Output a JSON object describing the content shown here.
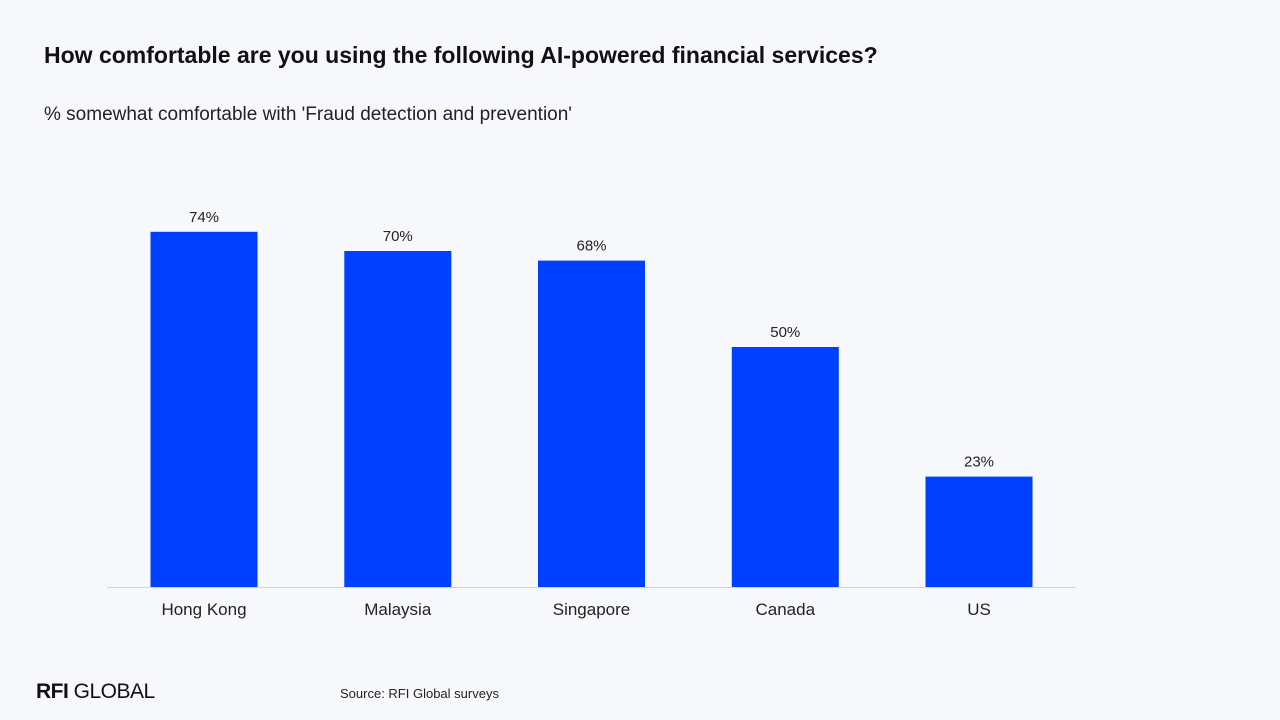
{
  "header": {
    "title": "How comfortable are you using the following AI-powered financial services?",
    "subtitle": "% somewhat comfortable with 'Fraud detection and prevention'"
  },
  "chart_data": {
    "type": "bar",
    "categories": [
      "Hong Kong",
      "Malaysia",
      "Singapore",
      "Canada",
      "US"
    ],
    "values": [
      74,
      70,
      68,
      50,
      23
    ],
    "value_labels": [
      "74%",
      "70%",
      "68%",
      "50%",
      "23%"
    ],
    "title": "How comfortable are you using the following AI-powered financial services?",
    "subtitle": "% somewhat comfortable with 'Fraud detection and prevention'",
    "xlabel": "",
    "ylabel": "",
    "ylim": [
      0,
      80
    ],
    "grid": false,
    "legend": "none",
    "bar_color": "#0040ff",
    "axis_color": "#cfd3dc"
  },
  "footer": {
    "logo_bold": "RFI",
    "logo_regular": " GLOBAL",
    "source": "Source: RFI Global surveys"
  }
}
